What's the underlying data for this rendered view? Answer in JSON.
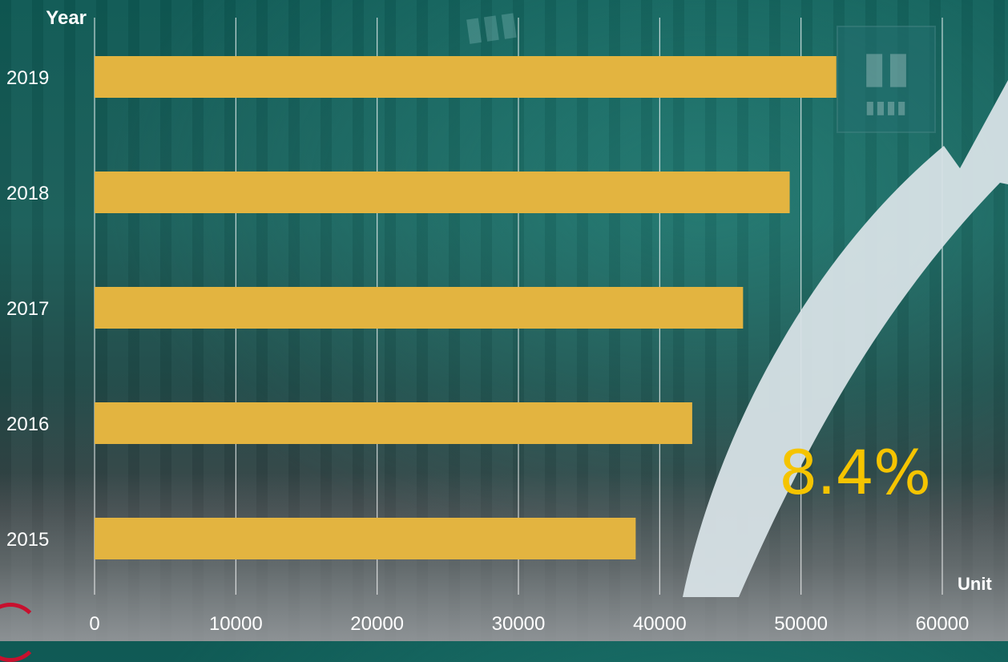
{
  "chart_data": {
    "type": "bar",
    "orientation": "horizontal",
    "title": "",
    "ylabel": "Year",
    "xlabel": "Unit",
    "categories": [
      "2019",
      "2018",
      "2017",
      "2016",
      "2015"
    ],
    "values": [
      52500,
      49200,
      45900,
      42300,
      38300
    ],
    "xlim": [
      0,
      60000
    ],
    "xticks": [
      "0",
      "10000",
      "20000",
      "30000",
      "40000",
      "50000",
      "60000"
    ],
    "grid": true,
    "bar_color": "#e3b440",
    "annotation": "8.4%"
  },
  "colors": {
    "tick_text": "#ffffff",
    "grid_line": "#ffffff",
    "annotation": "#f5c400",
    "arrow": "#d7e1e6"
  }
}
